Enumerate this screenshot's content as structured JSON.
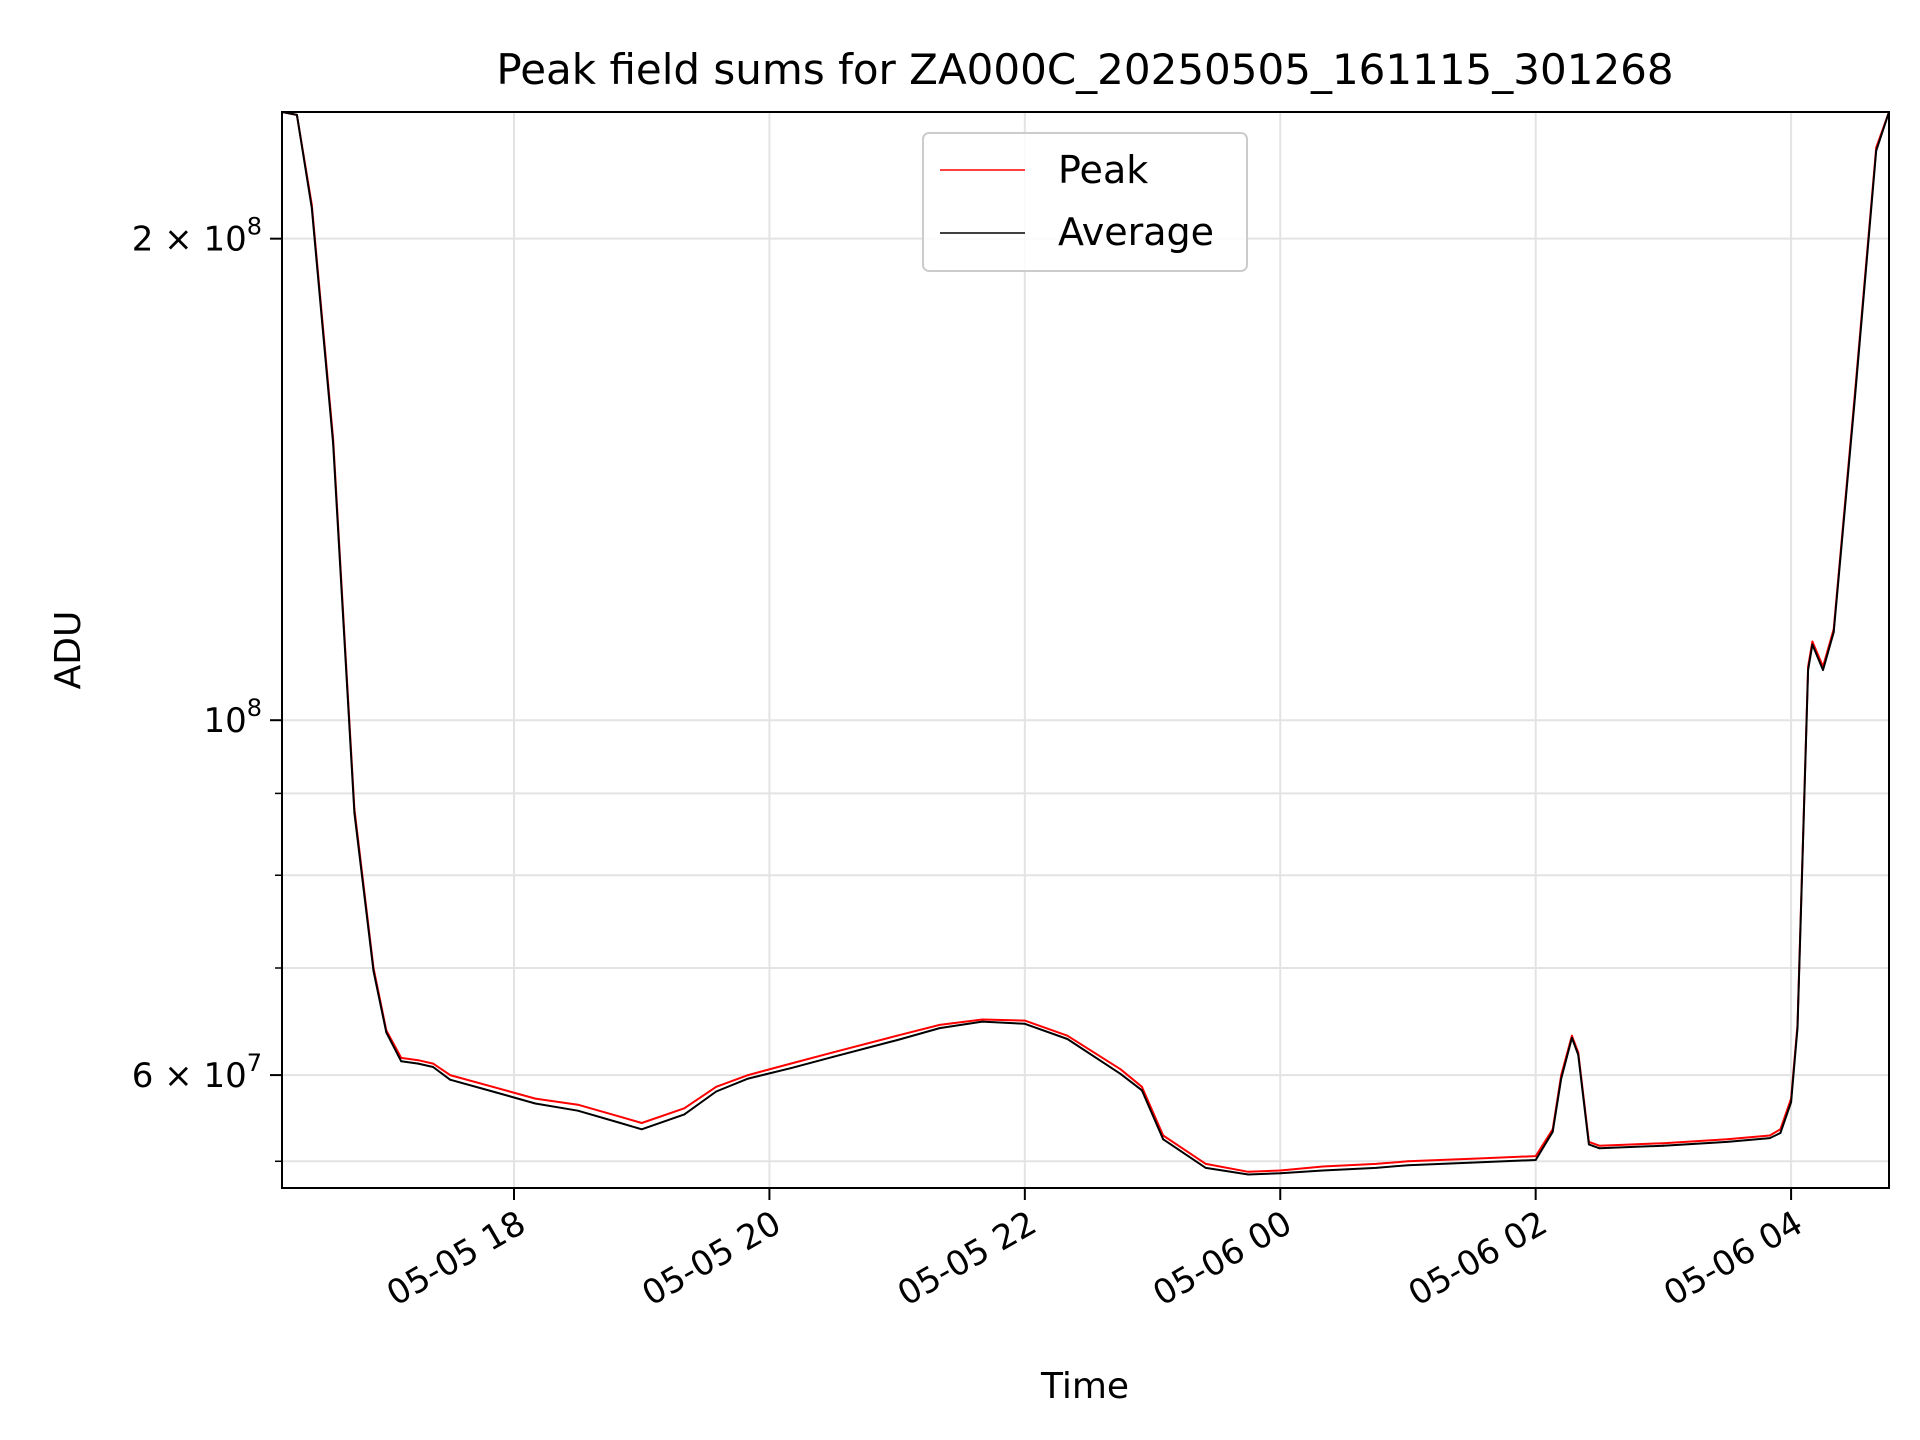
{
  "chart_data": {
    "type": "line",
    "title": "Peak field sums for ZA000C_20250505_161115_301268",
    "xlabel": "Time",
    "ylabel": "ADU",
    "y_scale": "log",
    "ylim": [
      51000000,
      240000000
    ],
    "xlim": [
      "2025-05-05T16:11",
      "2025-05-06T04:46"
    ],
    "grid": true,
    "legend_position": "top-center",
    "x_ticks": [
      {
        "t": "2025-05-05T18:00",
        "label": "05-05 18"
      },
      {
        "t": "2025-05-05T20:00",
        "label": "05-05 20"
      },
      {
        "t": "2025-05-05T22:00",
        "label": "05-05 22"
      },
      {
        "t": "2025-05-06T00:00",
        "label": "05-06 00"
      },
      {
        "t": "2025-05-06T02:00",
        "label": "05-06 02"
      },
      {
        "t": "2025-05-06T04:00",
        "label": "05-06 04"
      }
    ],
    "y_major_ticks": [
      {
        "v": 60000000,
        "mant": "6",
        "exp": "7"
      },
      {
        "v": 100000000,
        "mant": "",
        "exp": "8"
      },
      {
        "v": 200000000,
        "mant": "2",
        "exp": "8"
      }
    ],
    "y_minor_ticks": [
      53000000,
      70000000,
      80000000,
      90000000
    ],
    "series": [
      {
        "name": "Peak",
        "color": "#ff0000",
        "x": [
          "2025-05-05T16:11",
          "2025-05-05T16:18",
          "2025-05-05T16:25",
          "2025-05-05T16:35",
          "2025-05-05T16:45",
          "2025-05-05T16:54",
          "2025-05-05T17:00",
          "2025-05-05T17:07",
          "2025-05-05T17:15",
          "2025-05-05T17:22",
          "2025-05-05T17:30",
          "2025-05-05T17:50",
          "2025-05-05T18:10",
          "2025-05-05T18:30",
          "2025-05-05T18:50",
          "2025-05-05T19:00",
          "2025-05-05T19:20",
          "2025-05-05T19:35",
          "2025-05-05T19:50",
          "2025-05-05T20:10",
          "2025-05-05T20:30",
          "2025-05-05T21:00",
          "2025-05-05T21:20",
          "2025-05-05T21:40",
          "2025-05-05T22:00",
          "2025-05-05T22:20",
          "2025-05-05T22:45",
          "2025-05-05T22:55",
          "2025-05-05T23:05",
          "2025-05-05T23:25",
          "2025-05-05T23:45",
          "2025-05-06T00:00",
          "2025-05-06T00:20",
          "2025-05-06T00:45",
          "2025-05-06T01:00",
          "2025-05-06T01:30",
          "2025-05-06T02:00",
          "2025-05-06T02:08",
          "2025-05-06T02:12",
          "2025-05-06T02:17",
          "2025-05-06T02:20",
          "2025-05-06T02:25",
          "2025-05-06T02:30",
          "2025-05-06T03:00",
          "2025-05-06T03:30",
          "2025-05-06T03:50",
          "2025-05-06T03:55",
          "2025-05-06T04:00",
          "2025-05-06T04:03",
          "2025-05-06T04:08",
          "2025-05-06T04:10",
          "2025-05-06T04:15",
          "2025-05-06T04:20",
          "2025-05-06T04:30",
          "2025-05-06T04:40",
          "2025-05-06T04:46"
        ],
        "y": [
          240000000,
          239000000,
          210000000,
          150000000,
          88000000,
          70000000,
          64000000,
          61500000,
          61300000,
          61000000,
          60000000,
          59000000,
          58000000,
          57500000,
          56500000,
          56000000,
          57200000,
          59000000,
          60000000,
          61000000,
          62000000,
          63500000,
          64500000,
          65000000,
          64900000,
          63500000,
          60500000,
          59000000,
          55000000,
          52800000,
          52200000,
          52300000,
          52600000,
          52800000,
          53000000,
          53200000,
          53400000,
          55500000,
          60000000,
          63500000,
          62000000,
          54500000,
          54200000,
          54400000,
          54700000,
          55000000,
          55500000,
          58000000,
          64500000,
          108000000,
          112000000,
          108000000,
          114000000,
          160000000,
          228000000,
          240000000
        ]
      },
      {
        "name": "Average",
        "color": "#000000",
        "x": [
          "2025-05-05T16:11",
          "2025-05-05T16:18",
          "2025-05-05T16:25",
          "2025-05-05T16:35",
          "2025-05-05T16:45",
          "2025-05-05T16:54",
          "2025-05-05T17:00",
          "2025-05-05T17:07",
          "2025-05-05T17:15",
          "2025-05-05T17:22",
          "2025-05-05T17:30",
          "2025-05-05T17:50",
          "2025-05-05T18:10",
          "2025-05-05T18:30",
          "2025-05-05T18:50",
          "2025-05-05T19:00",
          "2025-05-05T19:20",
          "2025-05-05T19:35",
          "2025-05-05T19:50",
          "2025-05-05T20:10",
          "2025-05-05T20:30",
          "2025-05-05T21:00",
          "2025-05-05T21:20",
          "2025-05-05T21:40",
          "2025-05-05T22:00",
          "2025-05-05T22:20",
          "2025-05-05T22:45",
          "2025-05-05T22:55",
          "2025-05-05T23:05",
          "2025-05-05T23:25",
          "2025-05-05T23:45",
          "2025-05-06T00:00",
          "2025-05-06T00:20",
          "2025-05-06T00:45",
          "2025-05-06T01:00",
          "2025-05-06T01:30",
          "2025-05-06T02:00",
          "2025-05-06T02:08",
          "2025-05-06T02:12",
          "2025-05-06T02:17",
          "2025-05-06T02:20",
          "2025-05-06T02:25",
          "2025-05-06T02:30",
          "2025-05-06T03:00",
          "2025-05-06T03:30",
          "2025-05-06T03:50",
          "2025-05-06T03:55",
          "2025-05-06T04:00",
          "2025-05-06T04:03",
          "2025-05-06T04:08",
          "2025-05-06T04:10",
          "2025-05-06T04:15",
          "2025-05-06T04:20",
          "2025-05-06T04:30",
          "2025-05-06T04:40",
          "2025-05-06T04:46"
        ],
        "y": [
          240000000,
          239000000,
          209000000,
          149000000,
          87500000,
          69700000,
          63800000,
          61200000,
          61000000,
          60700000,
          59600000,
          58600000,
          57600000,
          57000000,
          56000000,
          55500000,
          56700000,
          58600000,
          59700000,
          60600000,
          61600000,
          63100000,
          64200000,
          64800000,
          64600000,
          63200000,
          60100000,
          58700000,
          54700000,
          52500000,
          52000000,
          52100000,
          52300000,
          52500000,
          52700000,
          52900000,
          53100000,
          55300000,
          59700000,
          63300000,
          61800000,
          54300000,
          54000000,
          54200000,
          54500000,
          54800000,
          55200000,
          57700000,
          64200000,
          107500000,
          111500000,
          107500000,
          113500000,
          159000000,
          227000000,
          240000000
        ]
      }
    ]
  }
}
